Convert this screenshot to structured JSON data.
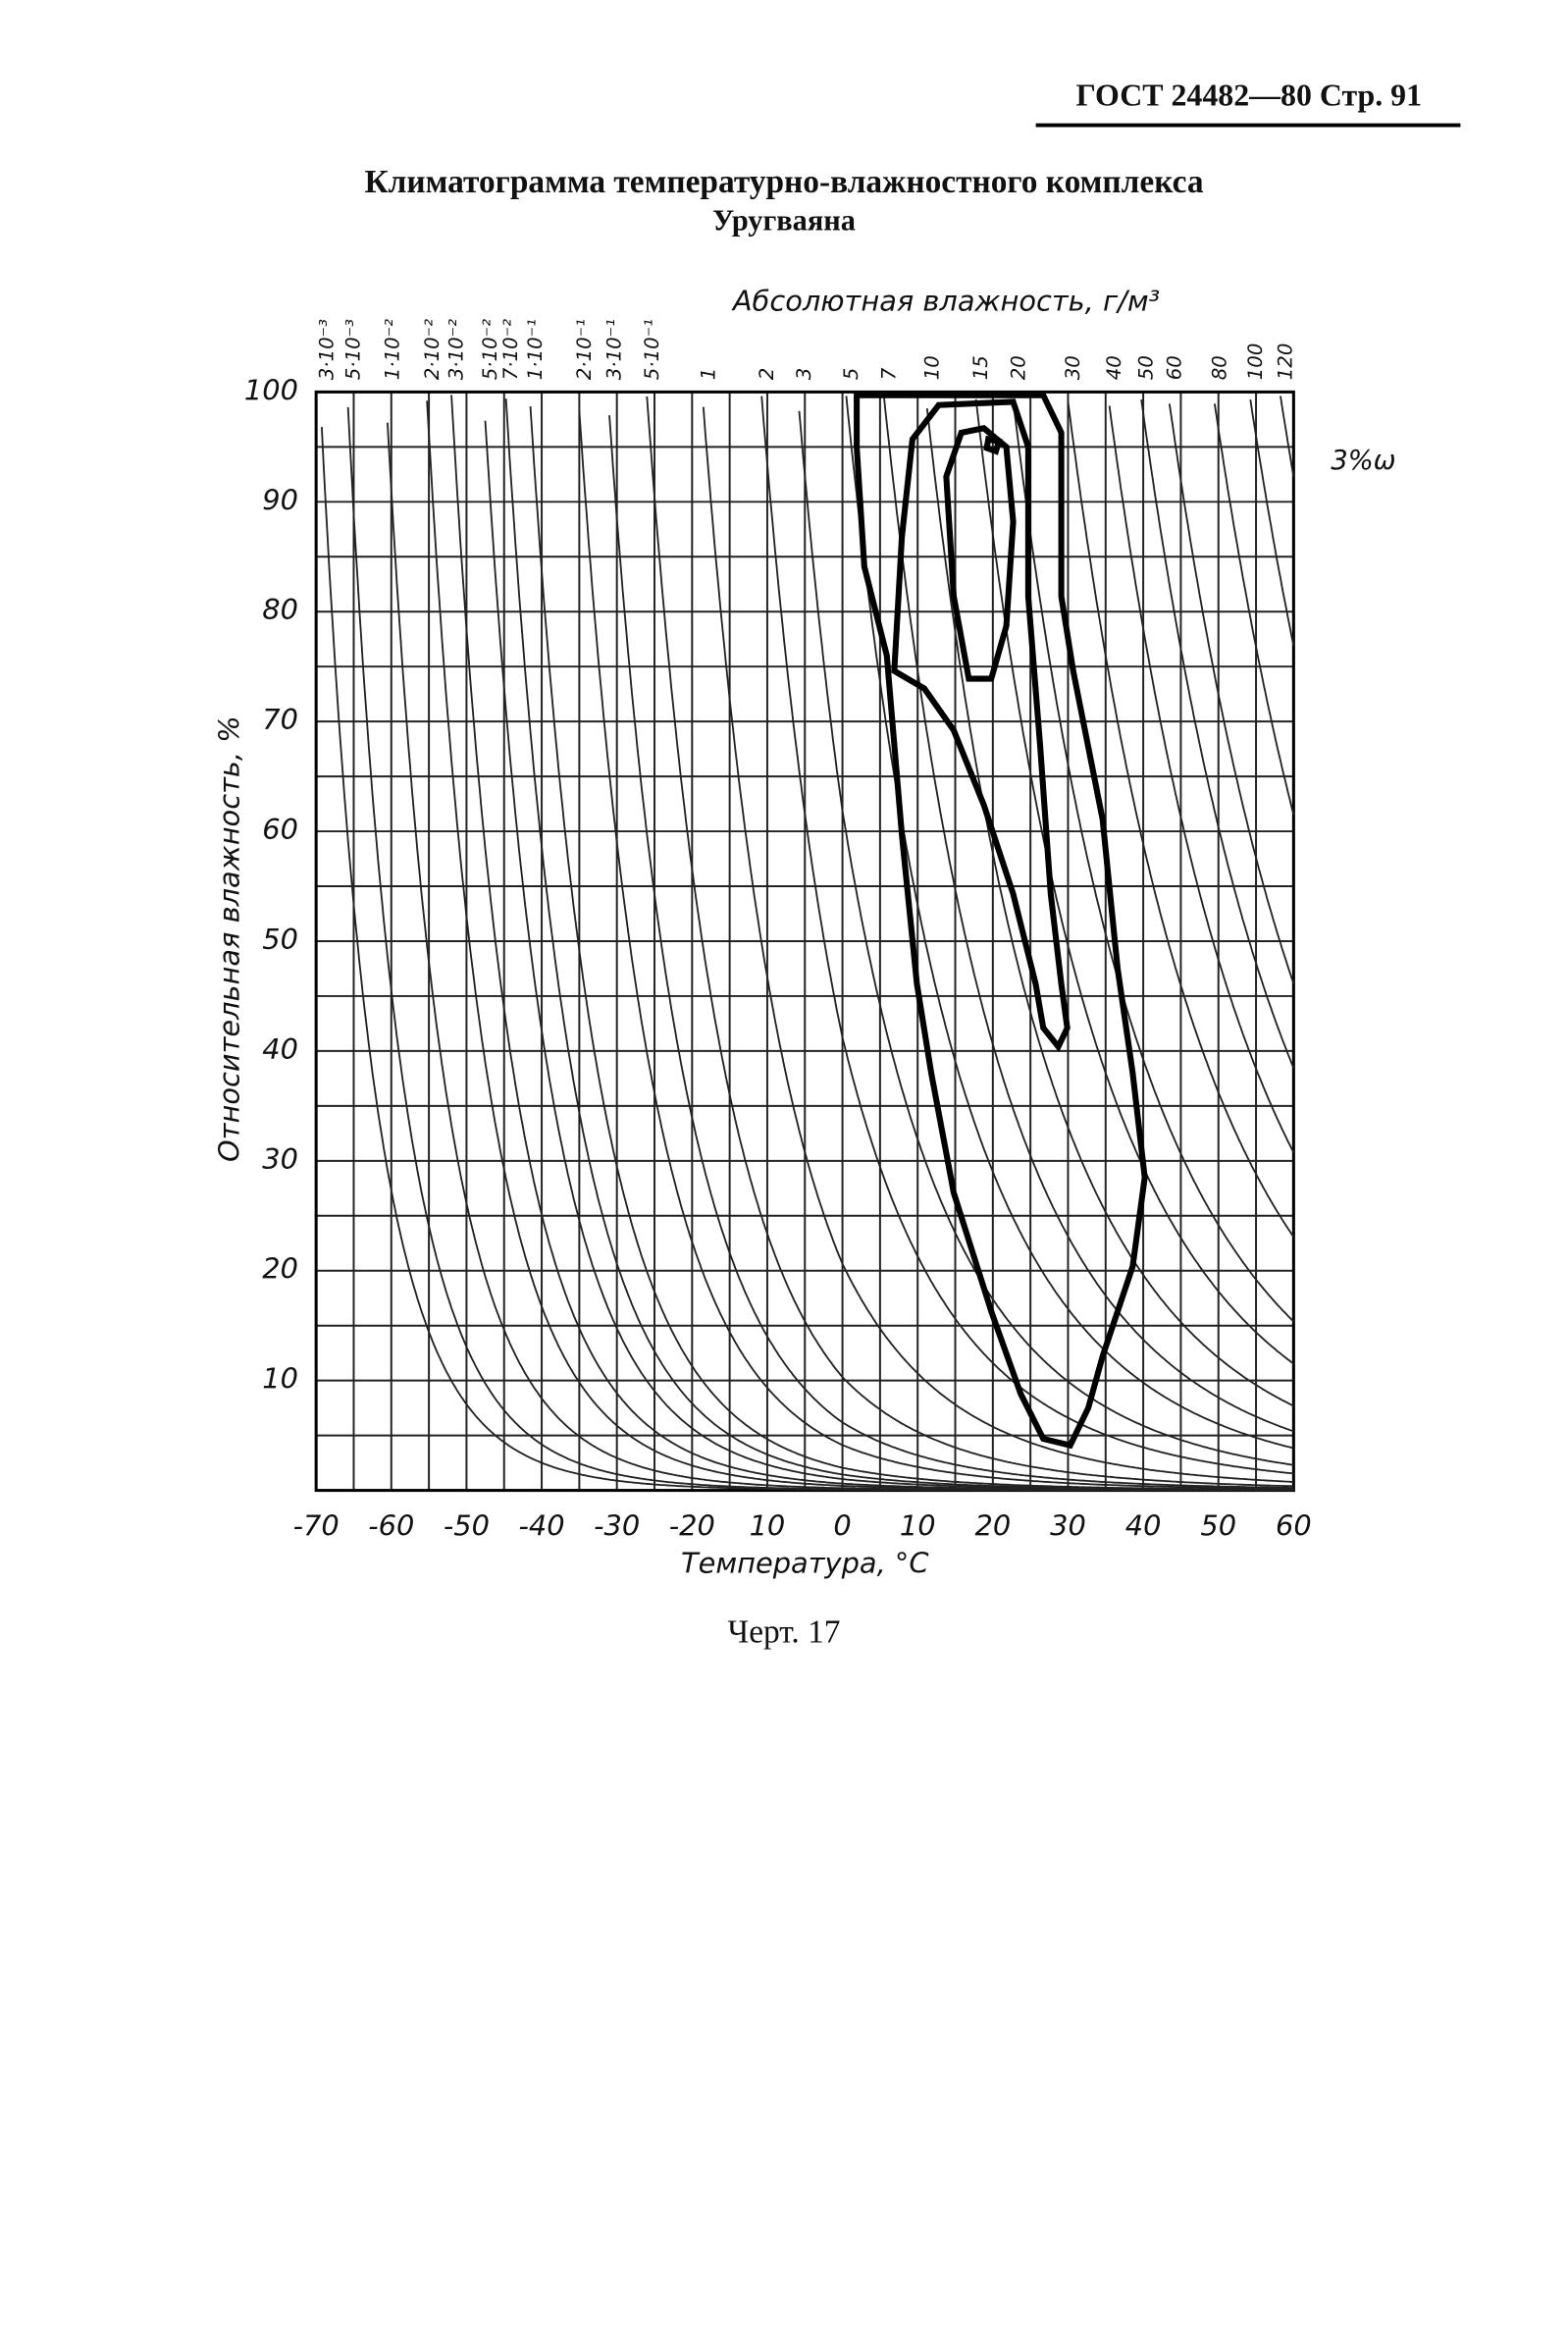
{
  "header": "ГОСТ 24482—80 Стр. 91",
  "caption": "Черт. 17",
  "chart_data": {
    "type": "line",
    "title": "Климатограмма температурно-влажностного комплекса",
    "subtitle": "Уругваяна",
    "x_label": "Температура, °С",
    "y_label": "Относительная влажность, %",
    "top_label": "Абсолютная влажность, г/м³",
    "annotation": "3%ω",
    "xlim": [
      -70,
      60
    ],
    "ylim": [
      0,
      100
    ],
    "xticks": [
      -70,
      -60,
      -50,
      -40,
      -30,
      -20,
      {
        "value": -10,
        "label": "10"
      },
      0,
      10,
      20,
      30,
      40,
      50,
      60
    ],
    "yticks": [
      10,
      20,
      30,
      40,
      50,
      60,
      70,
      80,
      90,
      100
    ],
    "grid": true,
    "abs_humidity_lines": [
      {
        "value": 0.003,
        "label": "3·10⁻³"
      },
      {
        "value": 0.005,
        "label": "5·10⁻³"
      },
      {
        "value": 0.01,
        "label": "1·10⁻²"
      },
      {
        "value": 0.02,
        "label": "2·10⁻²"
      },
      {
        "value": 0.03,
        "label": "3·10⁻²"
      },
      {
        "value": 0.05,
        "label": "5·10⁻²"
      },
      {
        "value": 0.07,
        "label": "7·10⁻²"
      },
      {
        "value": 0.1,
        "label": "1·10⁻¹"
      },
      {
        "value": 0.2,
        "label": "2·10⁻¹"
      },
      {
        "value": 0.3,
        "label": "3·10⁻¹"
      },
      {
        "value": 0.5,
        "label": "5·10⁻¹"
      },
      1,
      2,
      3,
      5,
      7,
      10,
      15,
      20,
      30,
      40,
      50,
      60,
      80,
      100,
      120
    ],
    "series": [
      {
        "color": "#000000",
        "x": [
          1.9,
          26.7,
          29.1,
          29.1,
          30.7,
          34.6,
          36.6,
          38.6,
          40.2,
          38.6,
          34.6,
          32.7,
          30.3,
          26.7,
          23.7,
          19.8,
          14.8,
          11.8,
          9.9,
          7.9,
          5.9,
          2.9,
          1.9
        ],
        "values": [
          99.7,
          99.7,
          96.3,
          81.4,
          74.6,
          61.1,
          47.5,
          38,
          28.5,
          20.4,
          12.2,
          7.5,
          4.1,
          4.7,
          8.8,
          16.3,
          27.1,
          38,
          46.1,
          59.7,
          76,
          84.1,
          95
        ]
      },
      {
        "color": "#000000",
        "x": [
          6.9,
          7.9,
          9.3,
          12.8,
          22.7,
          24.7,
          24.7,
          26.3,
          27.7,
          29.1,
          29.9,
          28.7,
          26.7,
          25.7,
          22.7,
          18.8,
          14.8,
          10.9
        ],
        "values": [
          74.6,
          86.8,
          95.7,
          98.8,
          99.1,
          95,
          81.4,
          67.8,
          54.3,
          46.1,
          42.1,
          40.4,
          42.1,
          46.1,
          54.3,
          62.4,
          69.2,
          73
        ]
      },
      {
        "color": "#000000",
        "x": [
          16.8,
          14.8,
          13.8,
          15.8,
          18.8,
          21.8,
          22.7,
          21.8,
          19.8
        ],
        "values": [
          73.9,
          81.4,
          92.3,
          96.3,
          96.7,
          95,
          88.2,
          78.7,
          73.9
        ]
      },
      {
        "color": "#000000",
        "x": [
          19.4,
          20.8,
          20.4,
          19.2
        ],
        "values": [
          95.7,
          95.5,
          94.6,
          94.9
        ]
      }
    ]
  }
}
